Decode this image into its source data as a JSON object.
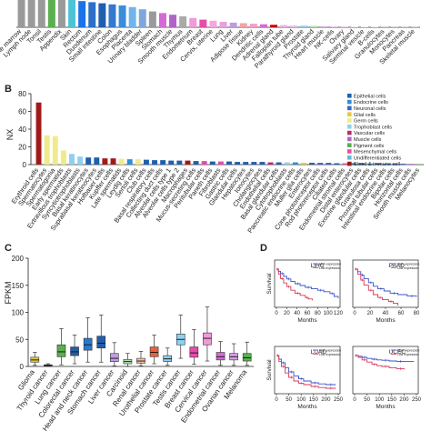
{
  "colors": {
    "epithelial": "#1f5fae",
    "endocrine": "#2b8fd6",
    "neuronal": "#3c63c8",
    "glial": "#e8c838",
    "germ": "#f0eb8a",
    "trophoblast": "#8fd0f0",
    "vascular": "#b42d6e",
    "muscle": "#b064c8",
    "pigment": "#5aaf4e",
    "mesenchymal": "#e64ca8",
    "undifferentiated": "#5fbdd8",
    "blood_immune": "#a01a1a",
    "survival_high": "#3a54c8",
    "survival_low": "#d83a5a"
  },
  "chart_data": [
    {
      "panel": "",
      "type": "bar",
      "categories": [
        "Bone marrow",
        "Lymph node",
        "Tonsil",
        "Testis",
        "Appendix",
        "Skin",
        "Rectum",
        "Duodenum",
        "Small intestine",
        "Colon",
        "Esophagus",
        "Placenta",
        "Urinary bladder",
        "Spleen",
        "Stomach",
        "Smooth muscle",
        "Thymus",
        "Endometrium",
        "Breast",
        "Cervix, uterine",
        "Lung",
        "Liver",
        "Adipose tissue",
        "Kidney",
        "Dendritic cells",
        "Adrenal gland",
        "Fallopian tube",
        "Parathyroid gland",
        "Prostate",
        "Thyroid gland",
        "Heart muscle",
        "NK-cells",
        "Ovary",
        "Salivary gland",
        "Seminal vesicle",
        "B-cells",
        "Granulocytes",
        "Monocytes",
        "Pancreas",
        "Skeletal muscle"
      ],
      "values": [
        100,
        100,
        100,
        100,
        100,
        100,
        96,
        92,
        88,
        84,
        80,
        74,
        66,
        58,
        52,
        46,
        40,
        34,
        28,
        24,
        20,
        17,
        15,
        13,
        11,
        9,
        8,
        7,
        6,
        5,
        4,
        3,
        3,
        2,
        2,
        2,
        1,
        1,
        1,
        1
      ],
      "colors": [
        "#9a9a9a",
        "#9a9a9a",
        "#9a9a9a",
        "#5aaf4e",
        "#9a9a9a",
        "#4fc3d6",
        "#1a73e8",
        "#2b6fc8",
        "#1f5fae",
        "#3478d0",
        "#3b8dd9",
        "#6fb5ec",
        "#7ea6dd",
        "#9a9a9a",
        "#d36ad6",
        "#b064c8",
        "#aaaaaa",
        "#f09ad8",
        "#e64ca8",
        "#f4a6e0",
        "#e9a0dc",
        "#c09ae6",
        "#f4a3a3",
        "#f0a0c8",
        "#d36ad6",
        "#c00000",
        "#eeb2e4",
        "#f0c0ee",
        "#8fd0f0",
        "#b4e0b0",
        "#e0b0e8",
        "#e8c0f0",
        "#f0d0f0",
        "#f4d8f4",
        "#f8e4f4",
        "#f4e0f0",
        "#f8e8f4",
        "#fbeefa",
        "#fdf2fb",
        "#fef6fc"
      ],
      "ylim": [
        0,
        100
      ]
    },
    {
      "panel": "B",
      "type": "bar",
      "ylabel": "NX",
      "ylim": [
        0,
        80
      ],
      "yticks": [
        0,
        20,
        40,
        60,
        80
      ],
      "categories": [
        "Erythroid cells",
        "Spermatocytes",
        "Spermatogonia",
        "Early spermatids",
        "Extravillous trophoblasts",
        "Syncytiotrophoblasts",
        "Basal keratinocytes",
        "Suprabasal keratinocytes",
        "Hofbauer cells",
        "Kupffer cells",
        "Late spermatids",
        "Leydig cells",
        "Sertoli cells",
        "Club cells",
        "Basal respiratory cells",
        "Collecting duct cells",
        "Alveolar cells type 1",
        "Alveolar cells type 2",
        "Macrophages",
        "Mucus-secreting cells",
        "Peritubular cells",
        "Paneth cells",
        "Fibroblasts",
        "Gastric cells",
        "Glandular cells",
        "Hepatocytes",
        "Ionocytes",
        "Cholangiocytes",
        "Endothelial cells",
        "Basal glandular cells",
        "Cytotrophoblasts",
        "Pancreatic endocrine cells",
        "Muller glia cells",
        "Enterocytes",
        "Cone photoreceptor cells",
        "Rod photoreceptor cells",
        "Ciliated cells",
        "Endometrial stromal cells",
        "Distal enterocytes",
        "Exocrine glandular cells",
        "Granulosa cells",
        "Proximal tubular cells",
        "Intestinal endocrine cells",
        "Bipolar cells",
        "Horizontal cells",
        "Smooth muscle cells",
        "Melanocytes"
      ],
      "values": [
        70,
        33,
        32,
        16,
        12,
        9,
        8,
        8,
        7,
        7,
        6.5,
        6,
        6,
        5.5,
        5,
        5,
        4.5,
        4.5,
        4.5,
        4,
        4,
        3.5,
        3.5,
        3.5,
        3,
        3,
        3,
        3,
        2.5,
        2.5,
        2.5,
        2.5,
        2,
        2,
        2,
        2,
        1.5,
        1.5,
        1.5,
        1.5,
        1.2,
        1.2,
        1,
        1,
        1,
        0.8,
        0.6
      ],
      "colors": [
        "#a01a1a",
        "#f0eb8a",
        "#f0eb8a",
        "#f0eb8a",
        "#8fd0f0",
        "#8fd0f0",
        "#1f5fae",
        "#1f5fae",
        "#a01a1a",
        "#a01a1a",
        "#f0eb8a",
        "#2b8fd6",
        "#f0eb8a",
        "#1f5fae",
        "#1f5fae",
        "#1f5fae",
        "#1f5fae",
        "#1f5fae",
        "#a01a1a",
        "#1f5fae",
        "#e64ca8",
        "#1f5fae",
        "#e64ca8",
        "#1f5fae",
        "#1f5fae",
        "#1f5fae",
        "#1f5fae",
        "#1f5fae",
        "#b42d6e",
        "#1f5fae",
        "#8fd0f0",
        "#2b8fd6",
        "#e8c838",
        "#1f5fae",
        "#3c63c8",
        "#3c63c8",
        "#1f5fae",
        "#e64ca8",
        "#1f5fae",
        "#1f5fae",
        "#2b8fd6",
        "#1f5fae",
        "#2b8fd6",
        "#3c63c8",
        "#3c63c8",
        "#b064c8",
        "#5aaf4e"
      ],
      "legend": [
        {
          "label": "Epithelial cells",
          "color": "#1f5fae"
        },
        {
          "label": "Endocrine cells",
          "color": "#2b8fd6"
        },
        {
          "label": "Neuronal cells",
          "color": "#3c63c8"
        },
        {
          "label": "Glial cells",
          "color": "#e8c838"
        },
        {
          "label": "Germ cells",
          "color": "#f0eb8a"
        },
        {
          "label": "Trophoblast cells",
          "color": "#8fd0f0"
        },
        {
          "label": "Vascular cells",
          "color": "#b42d6e"
        },
        {
          "label": "Muscle cells",
          "color": "#b064c8"
        },
        {
          "label": "Pigment cells",
          "color": "#5aaf4e"
        },
        {
          "label": "Mesenchymal cells",
          "color": "#e64ca8"
        },
        {
          "label": "Undifferentiated cells",
          "color": "#5fbdd8"
        },
        {
          "label": "Blood & immune cell",
          "color": "#a01a1a"
        }
      ],
      "legend_position": "top-right"
    },
    {
      "panel": "C",
      "type": "box",
      "ylabel": "FPKM",
      "ylim": [
        0,
        200
      ],
      "yticks": [
        0,
        50,
        100,
        150,
        200
      ],
      "categories": [
        "Glioma",
        "Thyroid cancer",
        "Lung cancer",
        "Colorectal cancer",
        "Head and neck cancer",
        "Stomach cancer",
        "Liver cancer",
        "Carcinoid",
        "Renal cancer",
        "Urothelial cancer",
        "Prostate cancer",
        "Testis cancer",
        "Breast cancer",
        "Cervical cancer",
        "Endometrial cancer",
        "Ovarian cancer",
        "Melanoma"
      ],
      "boxes": [
        {
          "whislo": 2,
          "q1": 8,
          "median": 12,
          "q3": 17,
          "whishi": 26,
          "color": "#e8c838"
        },
        {
          "whislo": 0,
          "q1": 1,
          "median": 2,
          "q3": 3,
          "whishi": 5,
          "color": "#f4a6c8"
        },
        {
          "whislo": 3,
          "q1": 18,
          "median": 27,
          "q3": 40,
          "whishi": 70,
          "color": "#5aaf4e"
        },
        {
          "whislo": 5,
          "q1": 20,
          "median": 27,
          "q3": 36,
          "whishi": 58,
          "color": "#1f5fae"
        },
        {
          "whislo": 8,
          "q1": 30,
          "median": 40,
          "q3": 52,
          "whishi": 90,
          "color": "#2b78d0"
        },
        {
          "whislo": 8,
          "q1": 34,
          "median": 43,
          "q3": 56,
          "whishi": 95,
          "color": "#1f5fae"
        },
        {
          "whislo": 1,
          "q1": 9,
          "median": 15,
          "q3": 24,
          "whishi": 44,
          "color": "#c09ae6"
        },
        {
          "whislo": 0,
          "q1": 5,
          "median": 9,
          "q3": 13,
          "whishi": 24,
          "color": "#b4e0b0"
        },
        {
          "whislo": 1,
          "q1": 6,
          "median": 10,
          "q3": 15,
          "whishi": 28,
          "color": "#f0c0a0"
        },
        {
          "whislo": 5,
          "q1": 18,
          "median": 26,
          "q3": 36,
          "whishi": 58,
          "color": "#e8603c"
        },
        {
          "whislo": 2,
          "q1": 9,
          "median": 14,
          "q3": 20,
          "whishi": 34,
          "color": "#8fd0f0"
        },
        {
          "whislo": 15,
          "q1": 40,
          "median": 50,
          "q3": 60,
          "whishi": 95,
          "color": "#8fd0f0"
        },
        {
          "whislo": 4,
          "q1": 17,
          "median": 25,
          "q3": 36,
          "whishi": 68,
          "color": "#e64ca8"
        },
        {
          "whislo": 10,
          "q1": 40,
          "median": 52,
          "q3": 62,
          "whishi": 110,
          "color": "#f09ad8"
        },
        {
          "whislo": 2,
          "q1": 12,
          "median": 18,
          "q3": 26,
          "whishi": 46,
          "color": "#d36ad6"
        },
        {
          "whislo": 2,
          "q1": 12,
          "median": 18,
          "q3": 24,
          "whishi": 42,
          "color": "#d7a0e6"
        },
        {
          "whislo": 2,
          "q1": 10,
          "median": 16,
          "q3": 24,
          "whishi": 45,
          "color": "#5aaf4e"
        }
      ]
    },
    {
      "panel": "D",
      "type": "line",
      "subpanels": [
        {
          "title": "LIHC",
          "xlabel": "Months",
          "ylabel": "Survival",
          "xlim": [
            0,
            120
          ],
          "xticks": [
            0,
            20,
            40,
            60,
            80,
            100,
            120
          ],
          "legend_entries": [
            "High expression",
            "Low expression"
          ],
          "series": [
            {
              "x": [
                0,
                4,
                8,
                14,
                20,
                28,
                36,
                46,
                56,
                68,
                80,
                92,
                104,
                112,
                120
              ],
              "y": [
                1.0,
                0.94,
                0.88,
                0.8,
                0.73,
                0.66,
                0.6,
                0.55,
                0.5,
                0.46,
                0.42,
                0.38,
                0.33,
                0.25,
                0.2
              ],
              "color": "#3a54c8"
            },
            {
              "x": [
                0,
                4,
                8,
                14,
                20,
                28,
                36,
                46,
                56,
                62,
                70
              ],
              "y": [
                1.0,
                0.86,
                0.74,
                0.62,
                0.52,
                0.42,
                0.34,
                0.28,
                0.22,
                0.18,
                0.14
              ],
              "color": "#d83a5a"
            }
          ]
        },
        {
          "title": "PAAD",
          "xlabel": "Months",
          "ylabel": "",
          "xlim": [
            0,
            80
          ],
          "xticks": [
            0,
            20,
            40,
            60,
            80
          ],
          "legend_entries": [
            "High expression",
            "Low expression"
          ],
          "series": [
            {
              "x": [
                0,
                4,
                8,
                12,
                18,
                24,
                30,
                38,
                46,
                56,
                68,
                80
              ],
              "y": [
                1.0,
                0.93,
                0.84,
                0.74,
                0.63,
                0.53,
                0.46,
                0.4,
                0.34,
                0.3,
                0.26,
                0.24
              ],
              "color": "#3a54c8"
            },
            {
              "x": [
                0,
                4,
                8,
                12,
                18,
                24,
                30,
                36,
                44,
                50,
                56
              ],
              "y": [
                1.0,
                0.86,
                0.7,
                0.56,
                0.42,
                0.3,
                0.22,
                0.16,
                0.11,
                0.06,
                0.0
              ],
              "color": "#d83a5a"
            }
          ]
        },
        {
          "title": "LUAD",
          "xlabel": "Months",
          "ylabel": "Survival",
          "xlim": [
            0,
            250
          ],
          "xticks": [
            0,
            50,
            100,
            150,
            200,
            250
          ],
          "legend_entries": [
            "High expression",
            "Low expression"
          ],
          "series": [
            {
              "x": [
                0,
                10,
                20,
                35,
                50,
                70,
                90,
                110,
                140,
                170,
                200,
                240
              ],
              "y": [
                1.0,
                0.9,
                0.8,
                0.66,
                0.55,
                0.44,
                0.36,
                0.3,
                0.25,
                0.22,
                0.2,
                0.2
              ],
              "color": "#3a54c8"
            },
            {
              "x": [
                0,
                10,
                20,
                35,
                50,
                70,
                90,
                110,
                140,
                170,
                200,
                240
              ],
              "y": [
                1.0,
                0.84,
                0.7,
                0.52,
                0.4,
                0.3,
                0.24,
                0.2,
                0.15,
                0.12,
                0.1,
                0.1
              ],
              "color": "#d83a5a"
            }
          ]
        },
        {
          "title": "UCEC",
          "xlabel": "Months",
          "ylabel": "",
          "xlim": [
            0,
            250
          ],
          "xticks": [
            0,
            50,
            100,
            150,
            200,
            250
          ],
          "legend_entries": [
            "High expression",
            "Low expression"
          ],
          "series": [
            {
              "x": [
                0,
                15,
                30,
                50,
                70,
                90,
                110,
                140,
                170,
                200,
                240
              ],
              "y": [
                1.0,
                0.98,
                0.95,
                0.92,
                0.9,
                0.88,
                0.87,
                0.85,
                0.84,
                0.84,
                0.84
              ],
              "color": "#3a54c8"
            },
            {
              "x": [
                0,
                15,
                30,
                50,
                70,
                90,
                110,
                140,
                170,
                200
              ],
              "y": [
                1.0,
                0.95,
                0.88,
                0.82,
                0.76,
                0.72,
                0.7,
                0.66,
                0.64,
                0.62
              ],
              "color": "#d83a5a"
            }
          ]
        }
      ]
    }
  ]
}
